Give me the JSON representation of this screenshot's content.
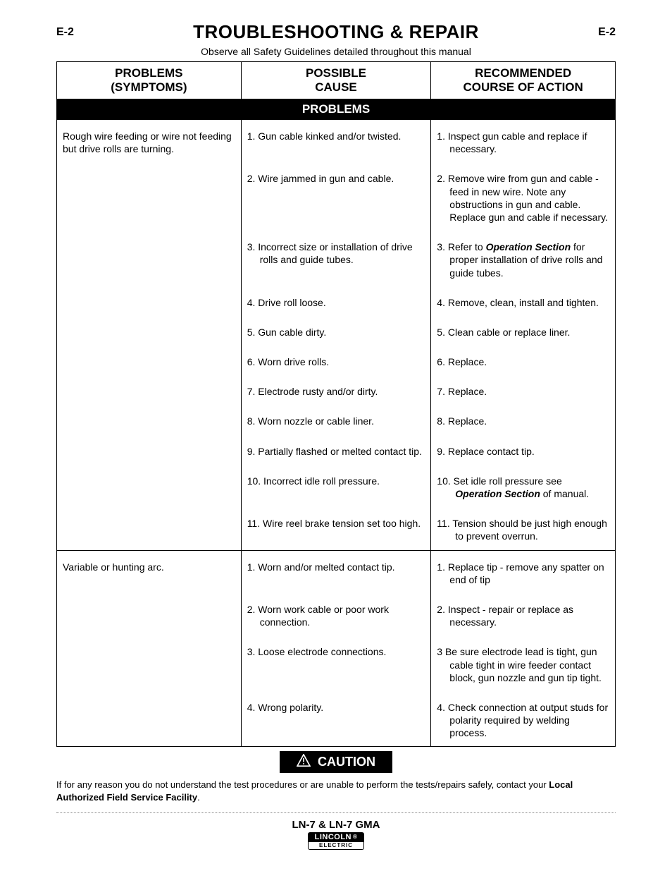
{
  "page_code": "E-2",
  "title": "TROUBLESHOOTING & REPAIR",
  "safety_note": "Observe all Safety Guidelines detailed throughout this manual",
  "table": {
    "headers": {
      "symptoms_l1": "PROBLEMS",
      "symptoms_l2": "(SYMPTOMS)",
      "cause_l1": "POSSIBLE",
      "cause_l2": "CAUSE",
      "action_l1": "RECOMMENDED",
      "action_l2": "COURSE OF ACTION"
    },
    "section_band": "PROBLEMS",
    "groups": [
      {
        "symptom": "Rough wire feeding or wire not feeding but drive rolls are turning.",
        "rows": [
          {
            "cause": "1. Gun cable kinked and/or twisted.",
            "action_parts": [
              {
                "t": "1. Inspect gun cable and replace if necessary."
              }
            ]
          },
          {
            "cause": "2. Wire jammed in gun and cable.",
            "action_parts": [
              {
                "t": "2. Remove wire from gun and cable - feed in new wire. Note any obstructions in gun and cable. Replace gun and cable if necessary."
              }
            ]
          },
          {
            "cause": "3. Incorrect size or installation of drive rolls and guide tubes.",
            "action_parts": [
              {
                "t": "3. Refer to "
              },
              {
                "t": "Operation Section",
                "bi": true
              },
              {
                "t": " for proper installation of drive rolls and guide tubes."
              }
            ]
          },
          {
            "cause": "4. Drive roll loose.",
            "action_parts": [
              {
                "t": "4. Remove, clean, install and tighten."
              }
            ]
          },
          {
            "cause": "5. Gun cable dirty.",
            "action_parts": [
              {
                "t": "5. Clean cable or replace liner."
              }
            ]
          },
          {
            "cause": "6. Worn drive rolls.",
            "action_parts": [
              {
                "t": "6. Replace."
              }
            ]
          },
          {
            "cause": "7. Electrode rusty and/or dirty.",
            "action_parts": [
              {
                "t": "7. Replace."
              }
            ]
          },
          {
            "cause": "8. Worn nozzle or cable liner.",
            "action_parts": [
              {
                "t": "8. Replace."
              }
            ]
          },
          {
            "cause": "9. Partially flashed or melted contact tip.",
            "action_parts": [
              {
                "t": "9. Replace contact tip."
              }
            ]
          },
          {
            "cause": "10. Incorrect idle roll pressure.",
            "action_parts": [
              {
                "t": "10. Set idle roll pressure see "
              },
              {
                "t": "Operation Section",
                "bi": true
              },
              {
                "t": " of manual."
              }
            ],
            "wide": true
          },
          {
            "cause": "11. Wire reel brake tension set too high.",
            "action_parts": [
              {
                "t": "11. Tension should be just high enough to prevent overrun."
              }
            ],
            "wide": true
          }
        ]
      },
      {
        "symptom": "Variable or hunting arc.",
        "rows": [
          {
            "cause": "1. Worn and/or melted contact tip.",
            "action_parts": [
              {
                "t": "1. Replace tip - remove any spatter on end of tip"
              }
            ],
            "tight": true
          },
          {
            "cause": "2. Worn work cable or poor work connection.",
            "action_parts": [
              {
                "t": "2. Inspect - repair or replace as necessary."
              }
            ]
          },
          {
            "cause": "3. Loose electrode connections.",
            "action_parts": [
              {
                "t": "3 Be sure electrode lead is tight, gun cable tight in wire feeder contact block, gun nozzle and gun tip tight."
              }
            ]
          },
          {
            "cause": "4. Wrong polarity.",
            "action_parts": [
              {
                "t": "4. Check connection at output studs for polarity required by welding process."
              }
            ]
          }
        ]
      }
    ]
  },
  "caution_label": "CAUTION",
  "caution_text_pre": "If for any reason you do not understand the test procedures or are unable to perform the tests/repairs safely, contact your ",
  "caution_text_bold": "Local Authorized Field Service Facility",
  "caution_text_post": ".",
  "footer_model": "LN-7 & LN-7 GMA",
  "footer_brand": "LINCOLN",
  "footer_sub": "ELECTRIC",
  "colors": {
    "text": "#000000",
    "bg": "#ffffff",
    "band_bg": "#000000",
    "band_fg": "#ffffff",
    "divider": "#888888"
  }
}
